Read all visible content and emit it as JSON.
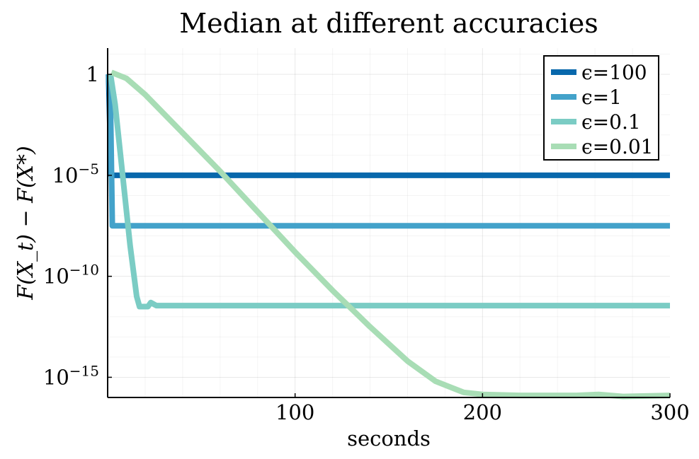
{
  "chart_data": {
    "type": "line",
    "title": "Median at different accuracies",
    "xlabel": "seconds",
    "ylabel": "F(X_t) − F(X*)",
    "xlim": [
      0,
      300
    ],
    "ylim_log10": [
      -16,
      1.3
    ],
    "yscale": "log10",
    "x_ticks": [
      {
        "value": 100,
        "label": "100"
      },
      {
        "value": 200,
        "label": "200"
      },
      {
        "value": 300,
        "label": "300"
      }
    ],
    "y_ticks": [
      {
        "exp": 0,
        "base": "1",
        "sup": ""
      },
      {
        "exp": -5,
        "base": "10",
        "sup": "−5"
      },
      {
        "exp": -10,
        "base": "10",
        "sup": "−10"
      },
      {
        "exp": -15,
        "base": "10",
        "sup": "−15"
      }
    ],
    "grid": true,
    "legend_position": "top-right",
    "series": [
      {
        "name": "ϵ=100",
        "color": "#0868ac",
        "points": [
          [
            0.5,
            0
          ],
          [
            1.8,
            -5
          ],
          [
            300,
            -5
          ]
        ]
      },
      {
        "name": "ϵ=1",
        "color": "#43a2ca",
        "points": [
          [
            0.5,
            0
          ],
          [
            1.5,
            -1.5
          ],
          [
            2.5,
            -7.5
          ],
          [
            300,
            -7.5
          ]
        ]
      },
      {
        "name": "ϵ=0.1",
        "color": "#7bccc4",
        "points": [
          [
            1.5,
            0
          ],
          [
            4,
            -1.5
          ],
          [
            8,
            -5
          ],
          [
            12,
            -8.5
          ],
          [
            15.5,
            -11
          ],
          [
            17,
            -11.5
          ],
          [
            20,
            -11.5
          ],
          [
            21.5,
            -11.5
          ],
          [
            23,
            -11.3
          ],
          [
            26,
            -11.45
          ],
          [
            300,
            -11.45
          ]
        ]
      },
      {
        "name": "ϵ=0.01",
        "color": "#a8ddb5",
        "points": [
          [
            2,
            0.1
          ],
          [
            10,
            -0.2
          ],
          [
            20,
            -1.0
          ],
          [
            40,
            -2.9
          ],
          [
            60,
            -4.8
          ],
          [
            80,
            -6.8
          ],
          [
            100,
            -8.8
          ],
          [
            120,
            -10.7
          ],
          [
            140,
            -12.5
          ],
          [
            160,
            -14.2
          ],
          [
            175,
            -15.2
          ],
          [
            190,
            -15.75
          ],
          [
            200,
            -15.85
          ],
          [
            220,
            -15.9
          ],
          [
            250,
            -15.9
          ],
          [
            262,
            -15.85
          ],
          [
            275,
            -15.95
          ],
          [
            300,
            -15.9
          ]
        ]
      }
    ]
  }
}
